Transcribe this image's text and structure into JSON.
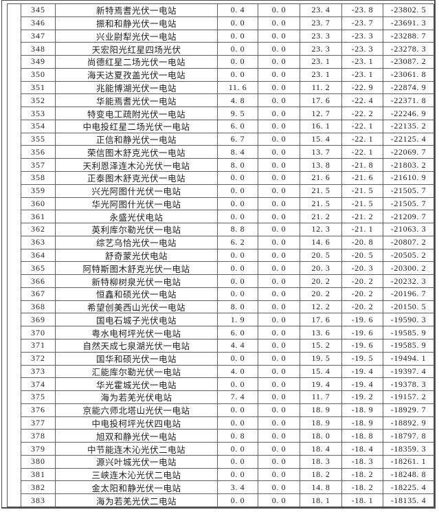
{
  "table": {
    "rows": [
      {
        "index": "345",
        "name": "新特焉耆光伏一电站",
        "values": [
          "0.4",
          "0.0",
          "23.4",
          "-23.8",
          "-23802.5"
        ]
      },
      {
        "index": "346",
        "name": "振和和静光伏一电站",
        "values": [
          "0.0",
          "0.0",
          "23.7",
          "-23.7",
          "-23691.3"
        ]
      },
      {
        "index": "347",
        "name": "兴业尉犁光伏一电站",
        "values": [
          "0.0",
          "0.0",
          "23.3",
          "-23.3",
          "-23288.7"
        ]
      },
      {
        "index": "348",
        "name": "天宏阳光红星四场光伏",
        "values": [
          "0.0",
          "0.0",
          "23.3",
          "-23.3",
          "-23278.3"
        ]
      },
      {
        "index": "349",
        "name": "尚德红星二场光伏一电站",
        "values": [
          "0.0",
          "0.0",
          "23.1",
          "-23.1",
          "-23087.2"
        ]
      },
      {
        "index": "350",
        "name": "海天达夏孜盖光伏一电站",
        "values": [
          "0.0",
          "0.0",
          "23.1",
          "-23.1",
          "-23061.8"
        ]
      },
      {
        "index": "351",
        "name": "兆能博湖光伏一电站",
        "values": [
          "11.6",
          "0.0",
          "11.2",
          "-22.9",
          "-22874.9"
        ]
      },
      {
        "index": "352",
        "name": "华能焉耆光伏一电站",
        "values": [
          "4.8",
          "0.0",
          "17.6",
          "-22.4",
          "-22371.8"
        ]
      },
      {
        "index": "353",
        "name": "特变电工疏附光伏一电站",
        "values": [
          "9.5",
          "0.0",
          "12.7",
          "-22.2",
          "-22246.9"
        ]
      },
      {
        "index": "354",
        "name": "中电投红星二场光伏一电站",
        "values": [
          "6.0",
          "0.0",
          "16.1",
          "-22.1",
          "-22135.2"
        ]
      },
      {
        "index": "355",
        "name": "正信和静光伏一电站",
        "values": [
          "6.7",
          "0.0",
          "15.4",
          "-22.1",
          "-22125.4"
        ]
      },
      {
        "index": "356",
        "name": "荣信图木舒克光伏一电站",
        "values": [
          "8.4",
          "0.0",
          "13.7",
          "-22.1",
          "-22069.7"
        ]
      },
      {
        "index": "357",
        "name": "天利恩泽连木沁光伏一电站",
        "values": [
          "8.0",
          "0.0",
          "13.8",
          "-21.8",
          "-21803.2"
        ]
      },
      {
        "index": "358",
        "name": "正泰图木舒克光伏一电站",
        "values": [
          "0.0",
          "0.0",
          "21.6",
          "-21.6",
          "-21610.9"
        ]
      },
      {
        "index": "359",
        "name": "兴光阿图什光伏一电站",
        "values": [
          "0.0",
          "0.0",
          "21.5",
          "-21.5",
          "-21505.7"
        ]
      },
      {
        "index": "360",
        "name": "华光阿图什光伏一电站",
        "values": [
          "0.0",
          "0.0",
          "21.5",
          "-21.5",
          "-21505.7"
        ]
      },
      {
        "index": "361",
        "name": "永盛光伏电站",
        "values": [
          "0.0",
          "0.0",
          "21.2",
          "-21.2",
          "-21209.7"
        ]
      },
      {
        "index": "362",
        "name": "英利库尔勒光伏一电站",
        "values": [
          "8.8",
          "0.0",
          "12.3",
          "-21.1",
          "-21063.3"
        ]
      },
      {
        "index": "363",
        "name": "综艺乌恰光伏一电站",
        "values": [
          "6.2",
          "0.0",
          "14.6",
          "-20.8",
          "-20807.2"
        ]
      },
      {
        "index": "364",
        "name": "舒奇蒙光伏电站",
        "values": [
          "0.0",
          "0.0",
          "20.5",
          "-20.5",
          "-20505.2"
        ]
      },
      {
        "index": "365",
        "name": "阿特斯图木舒克光伏一电站",
        "values": [
          "0.0",
          "0.0",
          "20.3",
          "-20.3",
          "-20300.2"
        ]
      },
      {
        "index": "366",
        "name": "新特柳树泉光伏一电站",
        "values": [
          "0.0",
          "0.0",
          "20.2",
          "-20.2",
          "-20232.3"
        ]
      },
      {
        "index": "367",
        "name": "恒鑫和硕光伏一电站",
        "values": [
          "0.0",
          "0.0",
          "20.2",
          "-20.2",
          "-20196.7"
        ]
      },
      {
        "index": "368",
        "name": "希望创美西山光伏一电站",
        "values": [
          "8.0",
          "0.0",
          "12.2",
          "-20.2",
          "-20150.5"
        ]
      },
      {
        "index": "369",
        "name": "国电石城子光伏电站",
        "values": [
          "1.9",
          "0.0",
          "17.6",
          "-19.6",
          "-19590.3"
        ]
      },
      {
        "index": "370",
        "name": "粤水电柯坪光伏一电站",
        "values": [
          "6.0",
          "0.0",
          "13.6",
          "-19.6",
          "-19585.9"
        ]
      },
      {
        "index": "371",
        "name": "自然天成七泉湖光伏一电站",
        "values": [
          "4.4",
          "0.0",
          "15.2",
          "-19.6",
          "-19585.9"
        ]
      },
      {
        "index": "372",
        "name": "国华和硕光伏一电站",
        "values": [
          "0.0",
          "0.0",
          "19.5",
          "-19.5",
          "-19494.1"
        ]
      },
      {
        "index": "373",
        "name": "汇能库尔勒光伏一电站",
        "values": [
          "4.0",
          "0.0",
          "15.4",
          "-19.4",
          "-19397.4"
        ]
      },
      {
        "index": "374",
        "name": "华光霍城光伏一电站",
        "values": [
          "0.0",
          "0.0",
          "19.4",
          "-19.4",
          "-19378.3"
        ]
      },
      {
        "index": "375",
        "name": "海为若羌光伏电站",
        "values": [
          "7.4",
          "0.0",
          "11.7",
          "-19.2",
          "-19157.2"
        ]
      },
      {
        "index": "376",
        "name": "京能六师北塔山光伏一电站",
        "values": [
          "0.0",
          "0.0",
          "18.9",
          "-18.9",
          "-18929.7"
        ]
      },
      {
        "index": "377",
        "name": "中电投柯坪光伏四电站",
        "values": [
          "0.0",
          "0.0",
          "18.9",
          "-18.9",
          "-18892.9"
        ]
      },
      {
        "index": "378",
        "name": "旭双和静光伏一电站",
        "values": [
          "0.8",
          "0.0",
          "18.0",
          "-18.8",
          "-18797.8"
        ]
      },
      {
        "index": "379",
        "name": "中节能连木沁光伏二电站",
        "values": [
          "0.0",
          "0.0",
          "18.4",
          "-18.4",
          "-18359.3"
        ]
      },
      {
        "index": "380",
        "name": "源兴叶城光伏一电站",
        "values": [
          "0.0",
          "0.0",
          "18.3",
          "-18.3",
          "-18261.1"
        ]
      },
      {
        "index": "381",
        "name": "三峡连木沁光伏二电站",
        "values": [
          "0.0",
          "0.0",
          "18.2",
          "-18.2",
          "-18248.8"
        ]
      },
      {
        "index": "382",
        "name": "金太阳和静光伏一电站",
        "values": [
          "3.4",
          "0.0",
          "14.8",
          "-18.2",
          "-18225.4"
        ]
      },
      {
        "index": "383",
        "name": "海为若羌光伏二电站",
        "values": [
          "0.0",
          "0.0",
          "18.1",
          "-18.1",
          "-18135.4"
        ]
      }
    ]
  },
  "colors": {
    "page_border": "#4a4a4a",
    "grid_line": "#5f5f5f",
    "text": "#1e1e1e",
    "background": "#ffffff"
  }
}
